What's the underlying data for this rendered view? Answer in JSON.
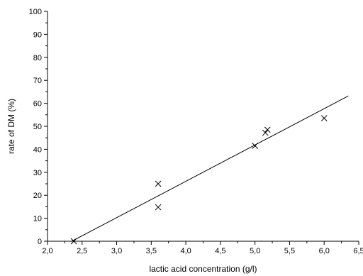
{
  "chart_data": {
    "type": "scatter",
    "title": "",
    "xlabel": "lactic acid concentration (g/l)",
    "ylabel": "rate of DM (%)",
    "xlim": [
      2.0,
      6.5
    ],
    "ylim": [
      0,
      100
    ],
    "x_ticks": [
      "2,0",
      "2,5",
      "3,0",
      "3,5",
      "4,0",
      "4,5",
      "5,0",
      "5,5",
      "6,0",
      "6,5"
    ],
    "y_ticks": [
      "0",
      "10",
      "20",
      "30",
      "40",
      "50",
      "60",
      "70",
      "80",
      "90",
      "100"
    ],
    "grid": false,
    "marker": "x",
    "series": [
      {
        "points": [
          {
            "x": 2.38,
            "y": 0.0
          },
          {
            "x": 3.6,
            "y": 25.0
          },
          {
            "x": 3.6,
            "y": 14.8
          },
          {
            "x": 5.0,
            "y": 41.5
          },
          {
            "x": 5.15,
            "y": 47.2
          },
          {
            "x": 5.18,
            "y": 48.5
          },
          {
            "x": 6.0,
            "y": 53.5
          }
        ]
      }
    ],
    "fit_line": {
      "x": [
        2.35,
        6.35
      ],
      "y": [
        0.0,
        63.2
      ]
    }
  }
}
